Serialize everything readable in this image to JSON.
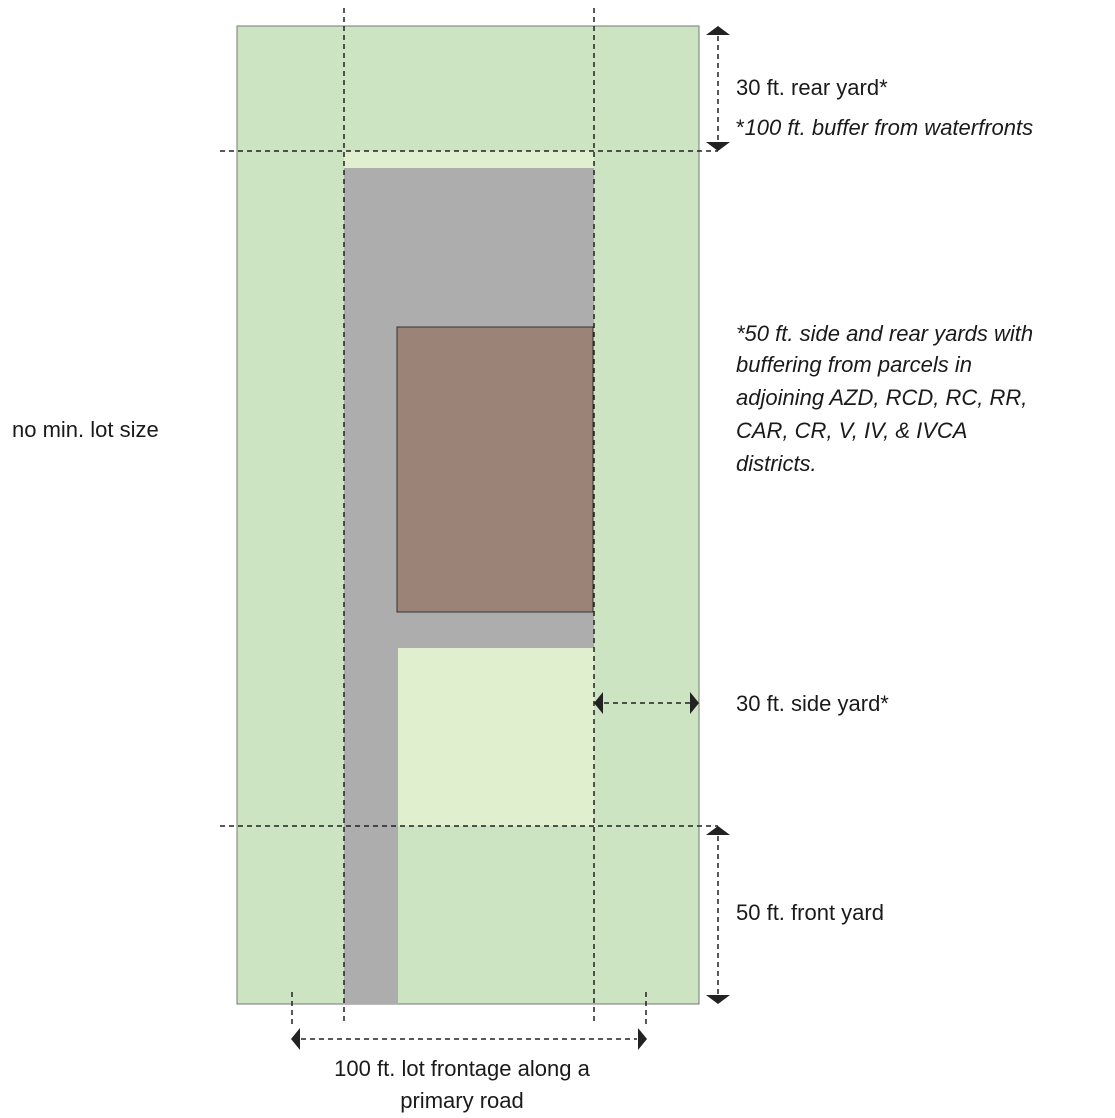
{
  "colors": {
    "lot": "#cde4c2",
    "buildable": "#e0efcd",
    "driveway": "#adadad",
    "building": "#9b8477",
    "lot_border": "#777777",
    "line": "#222222"
  },
  "labels": {
    "rear_yard": "30 ft. rear yard*",
    "waterfront_note_asterisk": "*",
    "waterfront_note": "100 ft. buffer from waterfronts",
    "buffer_note": [
      "*50 ft. side and rear yards with",
      "buffering from parcels in",
      "adjoining AZD, RCD, RC, RR,",
      "CAR, CR, V, IV, & IVCA",
      "districts."
    ],
    "lot_size": "no min. lot size",
    "side_yard": "30 ft. side yard*",
    "front_yard": "50 ft. front yard",
    "frontage": [
      "100 ft. lot frontage along a",
      "primary road"
    ]
  }
}
